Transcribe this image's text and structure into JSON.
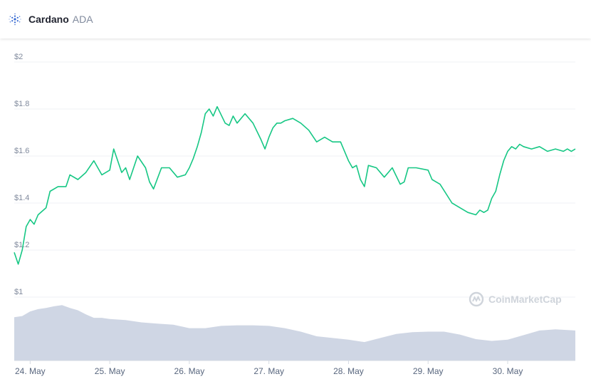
{
  "header": {
    "name": "Cardano",
    "symbol": "ADA",
    "logo_icon": "cardano-logo-icon"
  },
  "watermark": {
    "text": "CoinMarketCap",
    "icon": "coinmarketcap-logo-icon"
  },
  "colors": {
    "price_line": "#16c784",
    "volume_fill": "#cfd6e4",
    "grid": "#eff2f5",
    "axis_text": "#808a9d",
    "logo_blue": "#3468d1"
  },
  "chart_data": {
    "type": "line",
    "title": "",
    "xlabel": "",
    "ylabel": "",
    "ylim": [
      1,
      2
    ],
    "xlim": [
      23.8,
      30.85
    ],
    "yticks": [
      {
        "value": 1,
        "label": "$1"
      },
      {
        "value": 1.2,
        "label": "$1.2"
      },
      {
        "value": 1.4,
        "label": "$1.4"
      },
      {
        "value": 1.6,
        "label": "$1.6"
      },
      {
        "value": 1.8,
        "label": "$1.8"
      },
      {
        "value": 2,
        "label": "$2"
      }
    ],
    "xticks": [
      {
        "value": 24,
        "label": "24. May"
      },
      {
        "value": 25,
        "label": "25. May"
      },
      {
        "value": 26,
        "label": "26. May"
      },
      {
        "value": 27,
        "label": "27. May"
      },
      {
        "value": 28,
        "label": "28. May"
      },
      {
        "value": 29,
        "label": "29. May"
      },
      {
        "value": 30,
        "label": "30. May"
      }
    ],
    "grid": true,
    "series": [
      {
        "name": "",
        "kind": "price",
        "x": [
          23.8,
          23.85,
          23.9,
          23.95,
          24.0,
          24.05,
          24.1,
          24.2,
          24.25,
          24.35,
          24.45,
          24.5,
          24.6,
          24.7,
          24.8,
          24.9,
          25.0,
          25.05,
          25.1,
          25.15,
          25.2,
          25.25,
          25.35,
          25.45,
          25.5,
          25.55,
          25.65,
          25.75,
          25.85,
          25.95,
          26.0,
          26.05,
          26.1,
          26.15,
          26.2,
          26.25,
          26.3,
          26.35,
          26.45,
          26.5,
          26.55,
          26.6,
          26.7,
          26.8,
          26.9,
          26.95,
          27.0,
          27.05,
          27.1,
          27.15,
          27.2,
          27.3,
          27.4,
          27.5,
          27.6,
          27.7,
          27.8,
          27.9,
          28.0,
          28.05,
          28.1,
          28.15,
          28.2,
          28.25,
          28.35,
          28.45,
          28.55,
          28.65,
          28.7,
          28.75,
          28.85,
          29.0,
          29.05,
          29.15,
          29.3,
          29.4,
          29.5,
          29.6,
          29.65,
          29.7,
          29.75,
          29.8,
          29.85,
          29.9,
          29.95,
          30.0,
          30.05,
          30.1,
          30.15,
          30.2,
          30.3,
          30.4,
          30.5,
          30.6,
          30.7,
          30.75,
          30.8,
          30.85
        ],
        "y": [
          1.19,
          1.14,
          1.2,
          1.3,
          1.33,
          1.31,
          1.35,
          1.38,
          1.45,
          1.47,
          1.47,
          1.52,
          1.5,
          1.53,
          1.58,
          1.52,
          1.54,
          1.63,
          1.58,
          1.53,
          1.55,
          1.5,
          1.6,
          1.55,
          1.49,
          1.46,
          1.55,
          1.55,
          1.51,
          1.52,
          1.55,
          1.59,
          1.64,
          1.7,
          1.78,
          1.8,
          1.77,
          1.81,
          1.74,
          1.73,
          1.77,
          1.74,
          1.78,
          1.74,
          1.67,
          1.63,
          1.68,
          1.72,
          1.74,
          1.74,
          1.75,
          1.76,
          1.74,
          1.71,
          1.66,
          1.68,
          1.66,
          1.66,
          1.58,
          1.55,
          1.56,
          1.5,
          1.47,
          1.56,
          1.55,
          1.51,
          1.55,
          1.48,
          1.49,
          1.55,
          1.55,
          1.54,
          1.5,
          1.48,
          1.4,
          1.38,
          1.36,
          1.35,
          1.37,
          1.36,
          1.37,
          1.42,
          1.45,
          1.52,
          1.58,
          1.62,
          1.64,
          1.63,
          1.65,
          1.64,
          1.63,
          1.64,
          1.62,
          1.63,
          1.62,
          1.63,
          1.62,
          1.63
        ]
      },
      {
        "name": "",
        "kind": "volume",
        "x": [
          23.8,
          23.9,
          24.0,
          24.1,
          24.2,
          24.3,
          24.4,
          24.5,
          24.6,
          24.7,
          24.8,
          24.9,
          25.0,
          25.2,
          25.4,
          25.6,
          25.8,
          26.0,
          26.2,
          26.4,
          26.6,
          26.8,
          27.0,
          27.2,
          27.4,
          27.6,
          27.8,
          28.0,
          28.2,
          28.4,
          28.6,
          28.8,
          29.0,
          29.2,
          29.4,
          29.6,
          29.8,
          30.0,
          30.2,
          30.4,
          30.6,
          30.85
        ],
        "y": [
          0.75,
          0.77,
          0.85,
          0.89,
          0.91,
          0.94,
          0.96,
          0.91,
          0.87,
          0.8,
          0.74,
          0.74,
          0.72,
          0.7,
          0.66,
          0.64,
          0.62,
          0.56,
          0.56,
          0.6,
          0.61,
          0.61,
          0.6,
          0.56,
          0.5,
          0.42,
          0.39,
          0.36,
          0.32,
          0.39,
          0.46,
          0.49,
          0.5,
          0.5,
          0.45,
          0.37,
          0.34,
          0.36,
          0.44,
          0.52,
          0.54,
          0.52
        ]
      }
    ]
  }
}
